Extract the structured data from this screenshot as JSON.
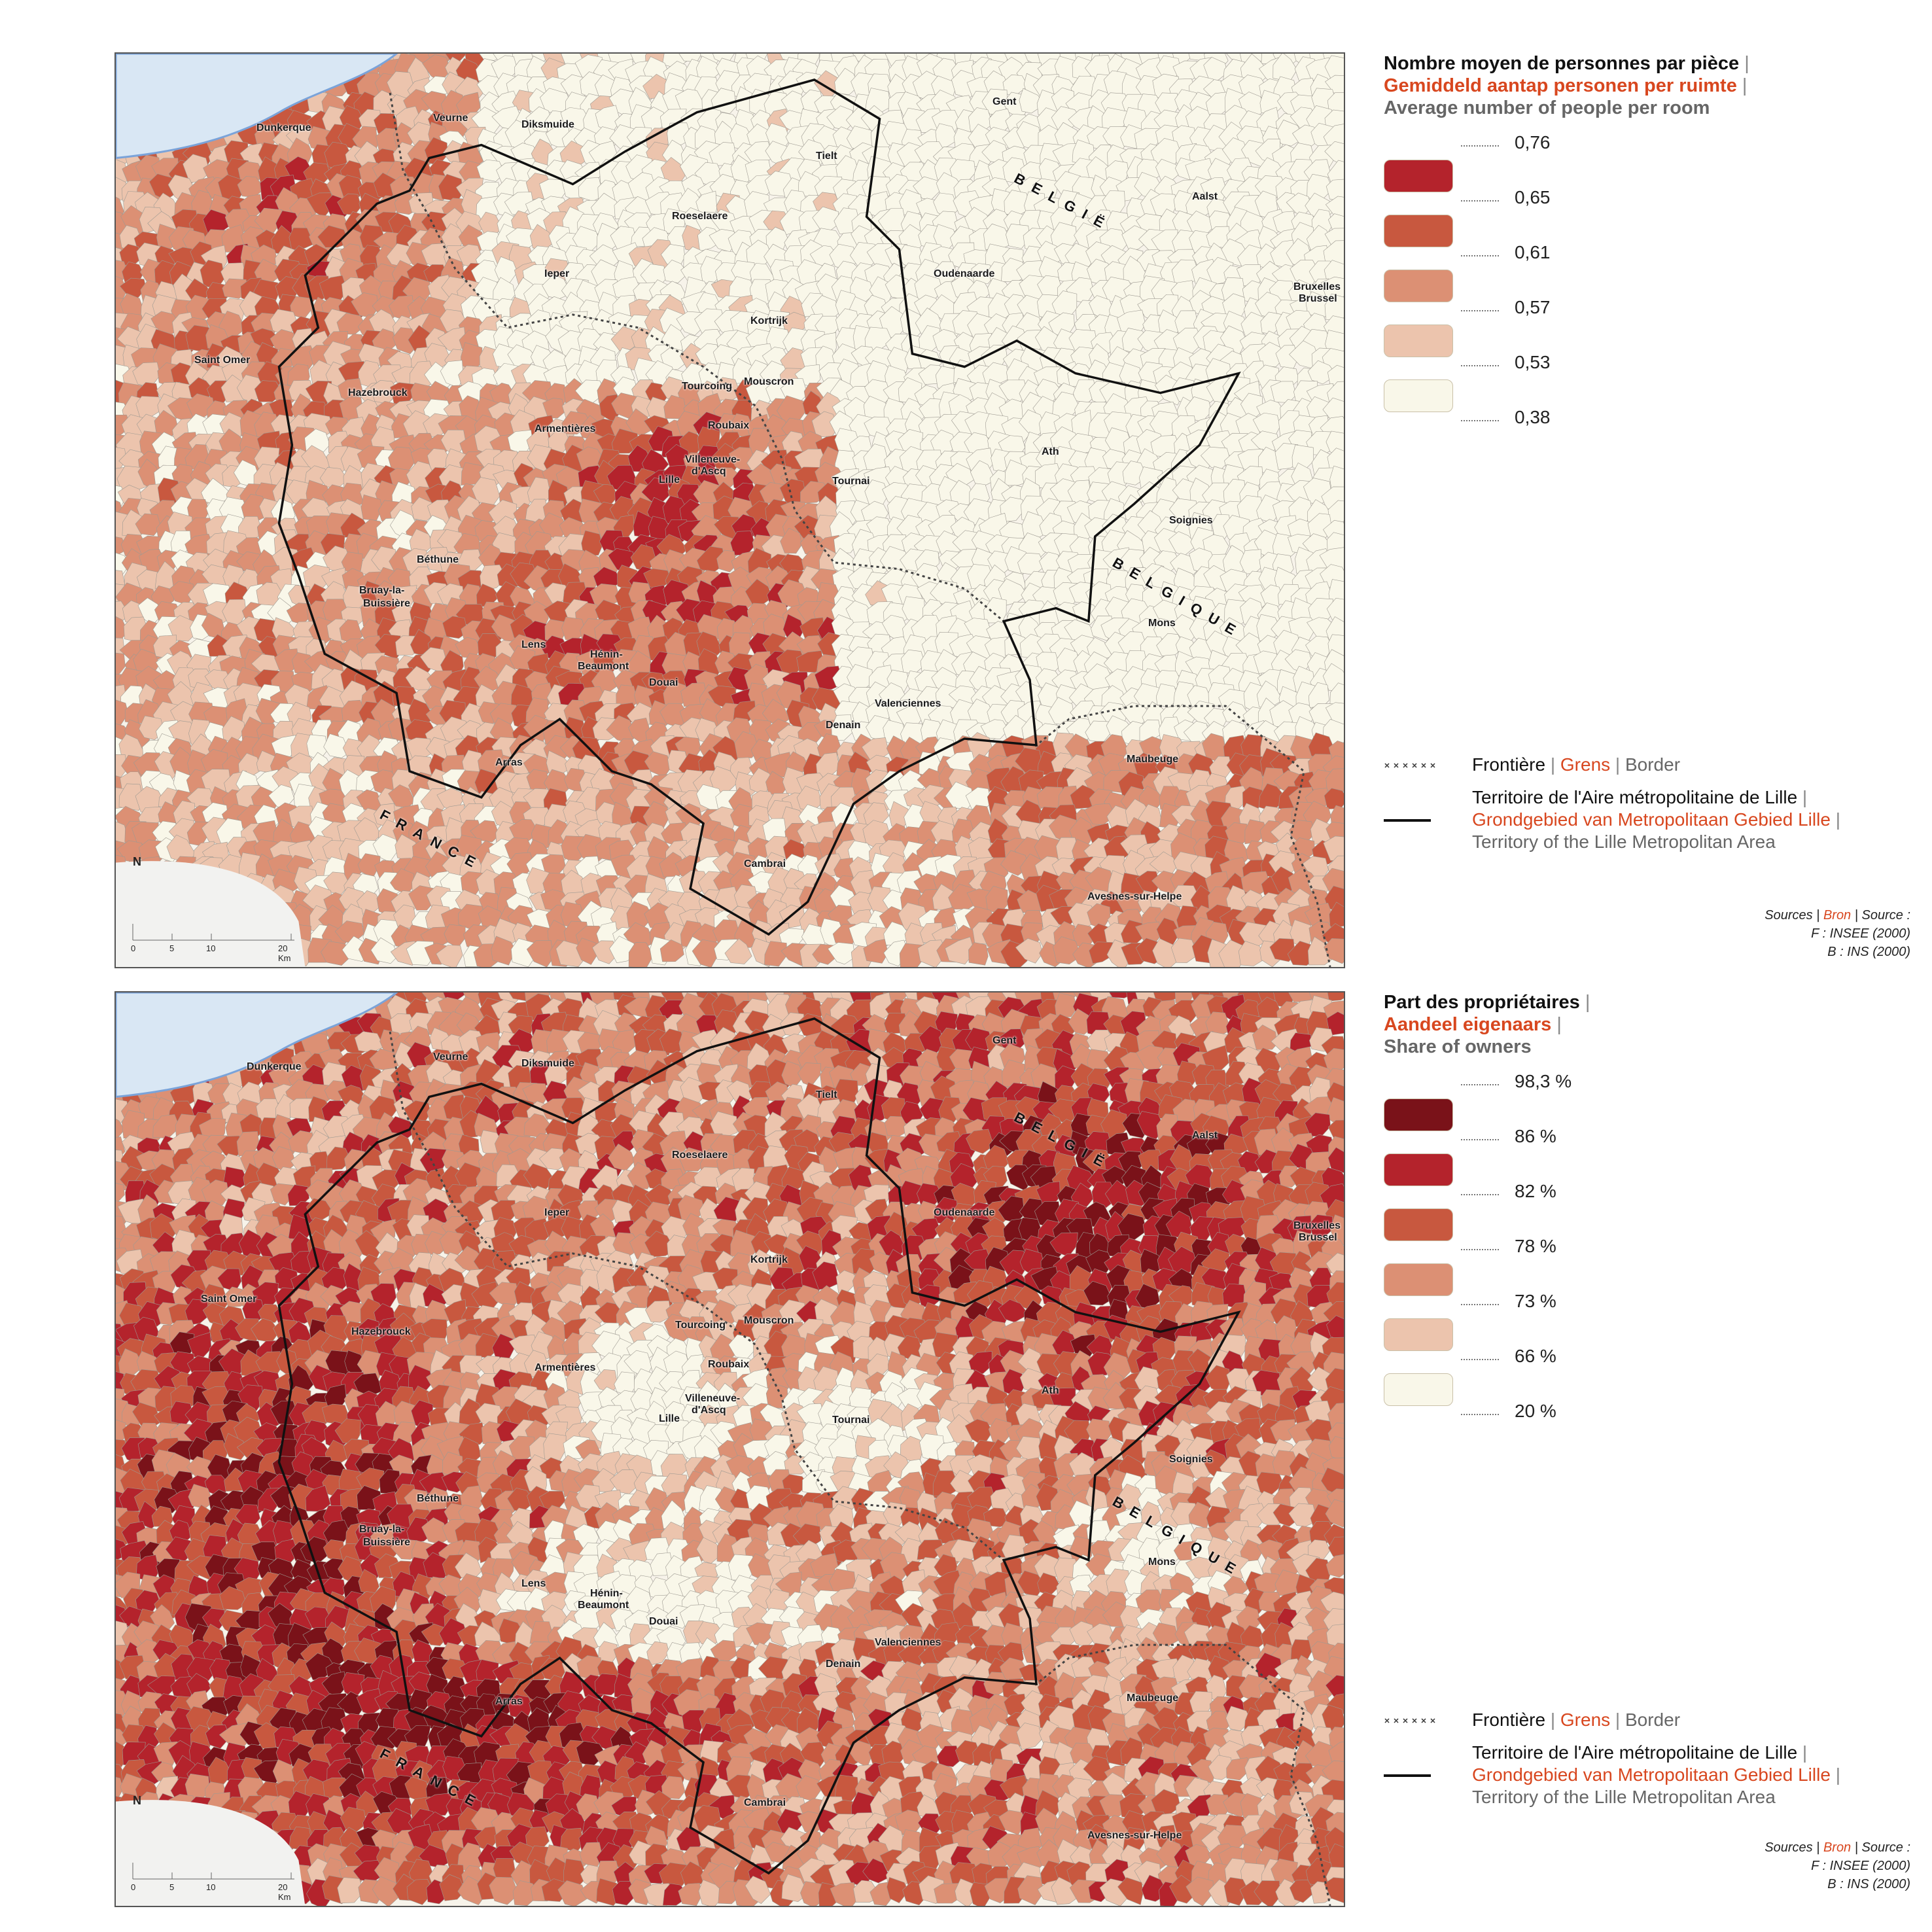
{
  "colors": {
    "sea": "#d9e7f4",
    "coast": "#7aa3d9",
    "land_base": "#f7f3ea",
    "cell_stroke": "#9e9a92",
    "metro_boundary": "#111111",
    "accent_orange": "#d8471f"
  },
  "maps": [
    {
      "id": "persons-per-room",
      "legend": {
        "title_fr": "Nombre moyen de personnes par pièce",
        "title_nl": "Gemiddeld aantap personen per ruimte",
        "title_en": "Average number of people per room",
        "breaks": [
          "0,76",
          "0,65",
          "0,61",
          "0,57",
          "0,53",
          "0,38"
        ],
        "class_colors": [
          "#b4232c",
          "#c8583f",
          "#dc9074",
          "#ecc4ad",
          "#f9f7e9"
        ]
      }
    },
    {
      "id": "share-of-owners",
      "legend": {
        "title_fr": "Part des propriétaires",
        "title_nl": "Aandeel eigenaars",
        "title_en": "Share of owners",
        "breaks": [
          "98,3 %",
          "86 %",
          "82 %",
          "78 %",
          "73 %",
          "66 %",
          "20 %"
        ],
        "class_colors": [
          "#7a1219",
          "#b4232c",
          "#c8583f",
          "#dc9074",
          "#ecc4ad",
          "#f9f7e9"
        ]
      }
    }
  ],
  "places": {
    "dunkerque": "Dunkerque",
    "veurne": "Veurne",
    "diksmuide": "Diksmuide",
    "gent": "Gent",
    "tielt": "Tielt",
    "aalst": "Aalst",
    "roeselaere": "Roeselaere",
    "ieper": "Ieper",
    "oudenaarde": "Oudenaarde",
    "bruxelles": "Bruxelles",
    "brussel": "Brussel",
    "kortrijk": "Kortrijk",
    "saint_omer": "Saint Omer",
    "hazebrouck": "Hazebrouck",
    "tourcoing": "Tourcoing",
    "mouscron": "Mouscron",
    "roubaix": "Roubaix",
    "armentieres": "Armentières",
    "lille": "Lille",
    "villeneuve_1": "Villeneuve-",
    "villeneuve_2": "d'Ascq",
    "tournai": "Tournai",
    "ath": "Ath",
    "soignies": "Soignies",
    "bethune": "Béthune",
    "bruay_1": "Bruay-la-",
    "bruay_2": "Buissière",
    "mons": "Mons",
    "lens": "Lens",
    "henin_1": "Hénin-",
    "henin_2": "Beaumont",
    "douai": "Douai",
    "valenciennes": "Valenciennes",
    "denain": "Denain",
    "arras": "Arras",
    "maubeuge": "Maubeuge",
    "cambrai": "Cambrai",
    "avesnes": "Avesnes-sur-Helpe"
  },
  "countries": {
    "belgie": "BELGIË",
    "belgique": "BELGIQUE",
    "france": "FRANCE"
  },
  "map_furniture": {
    "north": "N",
    "scale_ticks": [
      "0",
      "5",
      "10",
      "20 Km"
    ]
  },
  "line_legend": {
    "border_fr": "Frontière",
    "border_nl": "Grens",
    "border_en": "Border",
    "territory_fr": "Territoire de l'Aire métropolitaine de Lille",
    "territory_nl": "Grondgebied van Metropolitaan Gebied Lille",
    "territory_en": "Territory of the Lille Metropolitan Area",
    "separator": "|"
  },
  "sources": {
    "label_fr": "Sources",
    "label_nl": "Bron",
    "label_en": "Source :",
    "france": "F : INSEE (2000)",
    "belgium": "B : INS (2000)"
  }
}
